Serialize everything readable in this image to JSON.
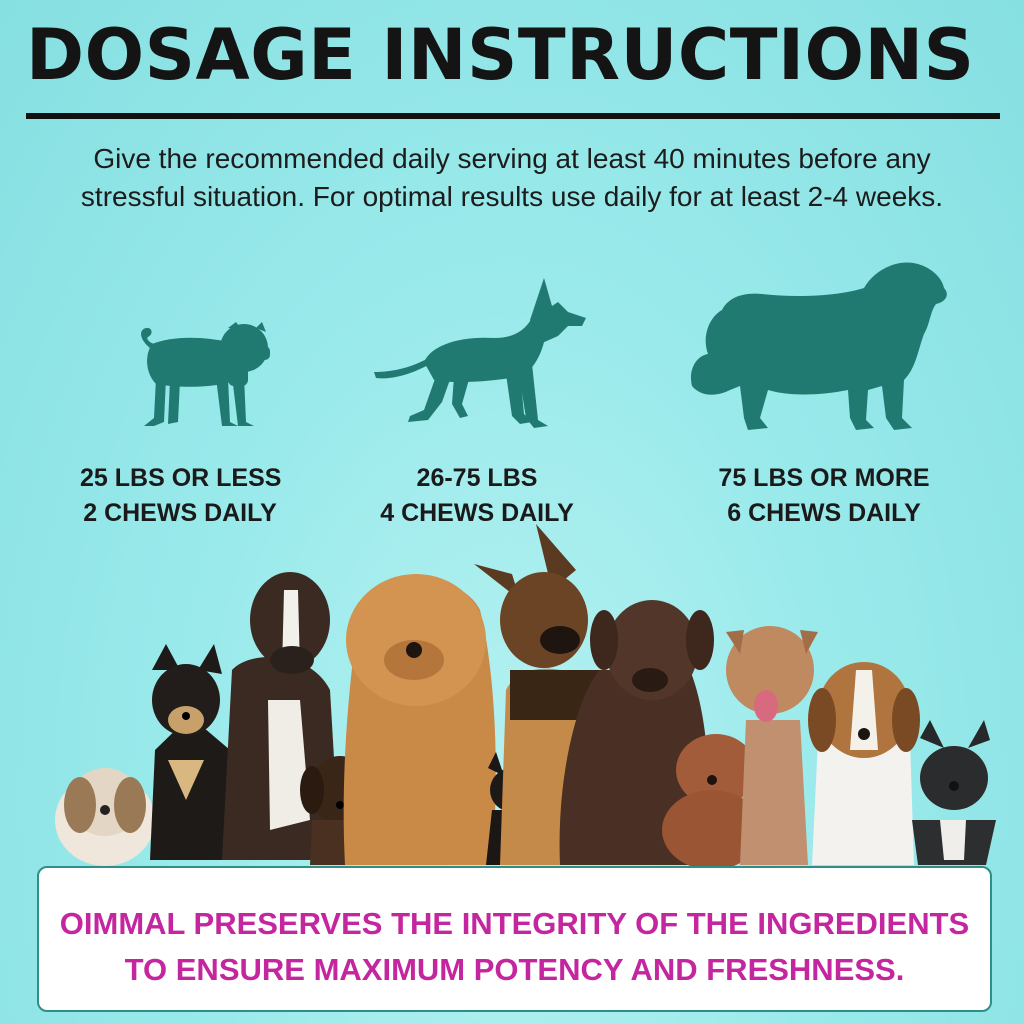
{
  "title": "DOSAGE INSTRUCTIONS",
  "intro": {
    "line1": "Give the recommended daily serving at least 40 minutes before any",
    "line2": "stressful situation. For optimal results use daily for at least 2-4 weeks."
  },
  "tiers": [
    {
      "weight": "25 LBS OR LESS",
      "dose": "2 CHEWS DAILY",
      "icon": "small-dog-silhouette-icon"
    },
    {
      "weight": "26-75 LBS",
      "dose": "4 CHEWS DAILY",
      "icon": "medium-dog-silhouette-icon"
    },
    {
      "weight": "75 LBS OR MORE",
      "dose": "6 CHEWS DAILY",
      "icon": "large-dog-silhouette-icon"
    }
  ],
  "banner": {
    "line1": "OIMMAL PRESERVES THE INTEGRITY OF THE INGREDIENTS",
    "line2": "TO ENSURE MAXIMUM POTENCY AND FRESHNESS."
  },
  "colors": {
    "background": "#9aeaeb",
    "silhouette": "#217a72",
    "banner_text": "#c3269e",
    "banner_border": "#2e8f88"
  }
}
